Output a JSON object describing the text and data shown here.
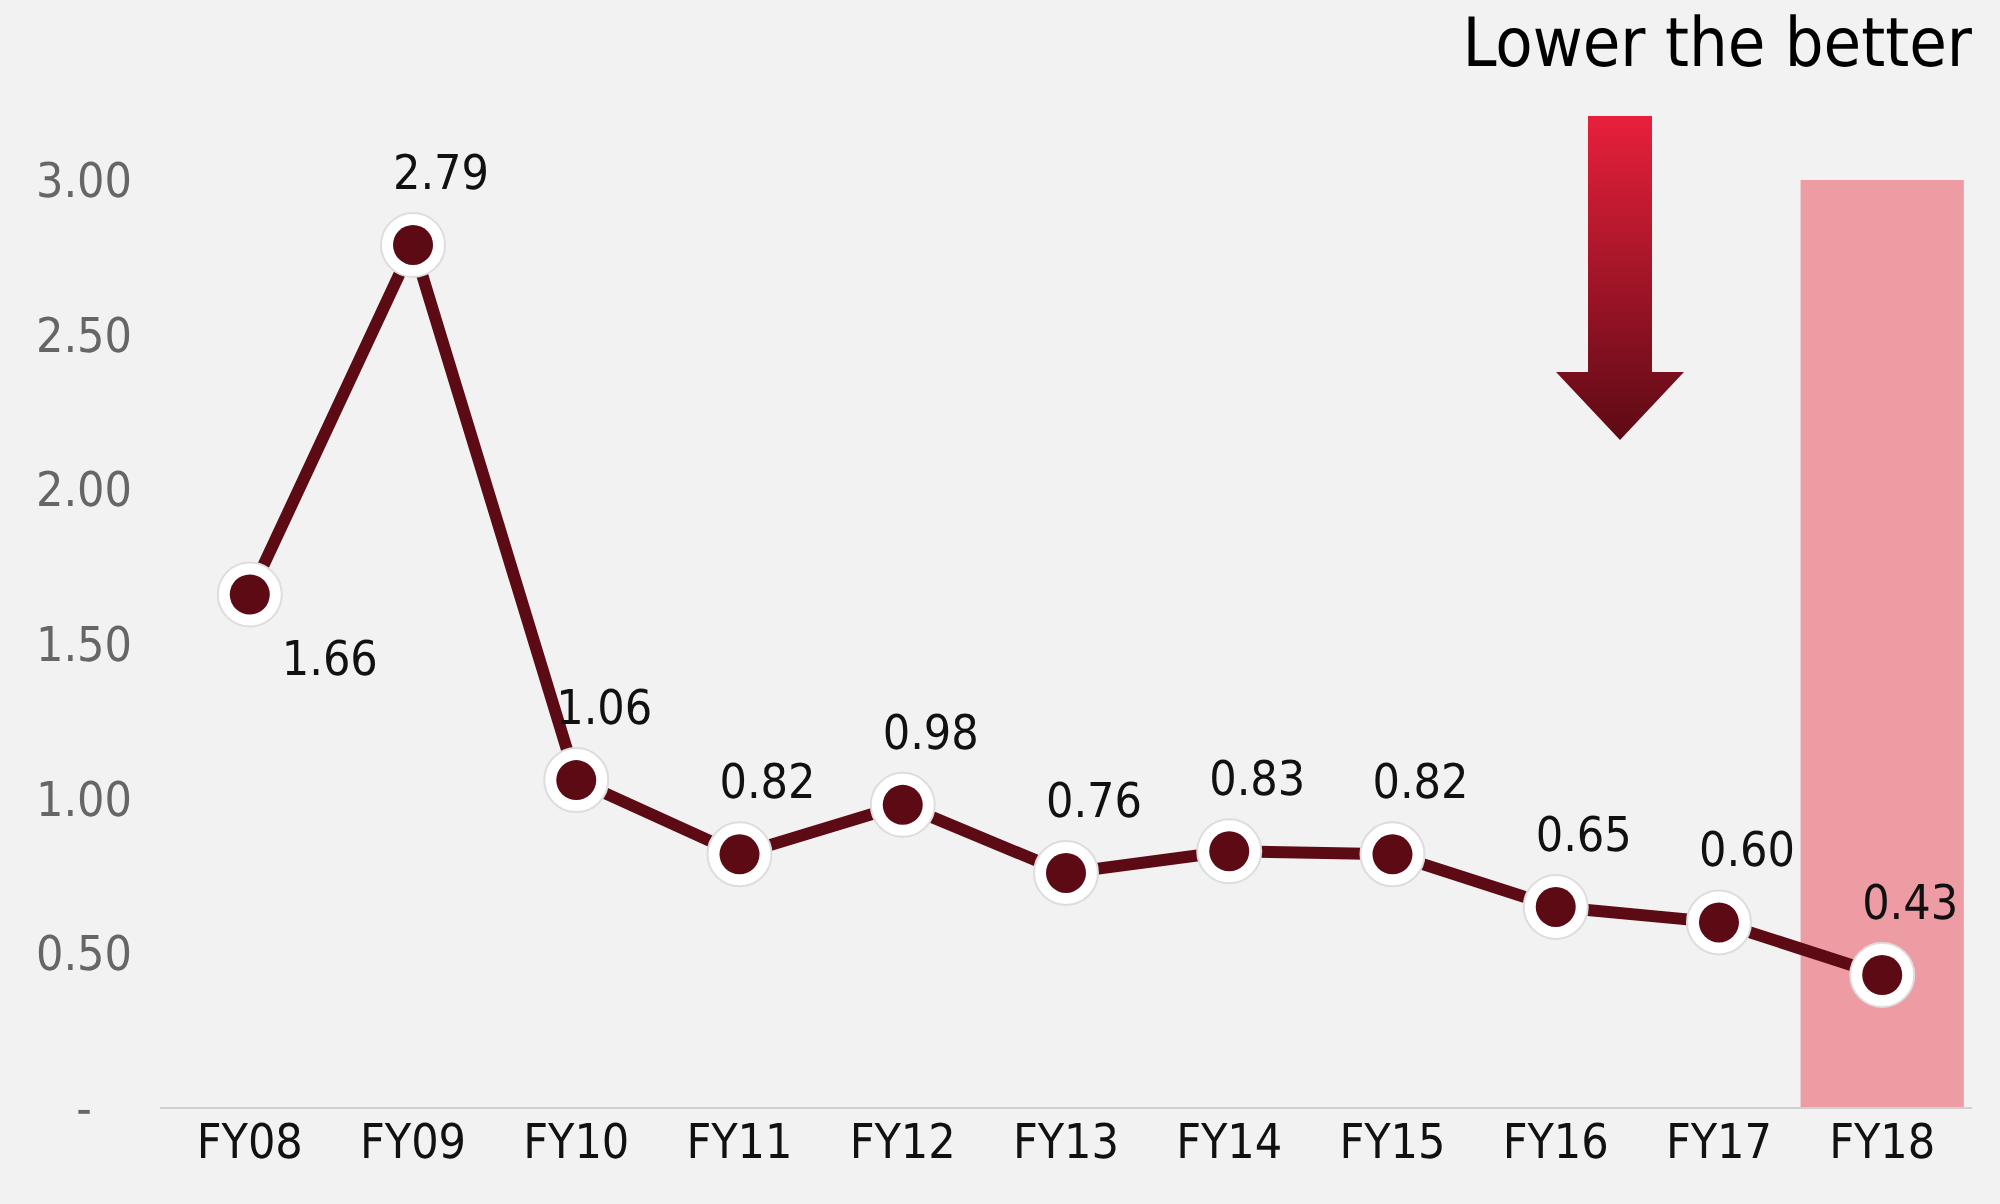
{
  "chart_data": {
    "type": "line",
    "annotations": [
      "Lower the better"
    ],
    "categories": [
      "FY08",
      "FY09",
      "FY10",
      "FY11",
      "FY12",
      "FY13",
      "FY14",
      "FY15",
      "FY16",
      "FY17",
      "FY18"
    ],
    "values": [
      1.66,
      2.79,
      1.06,
      0.82,
      0.98,
      0.76,
      0.83,
      0.82,
      0.65,
      0.6,
      0.43
    ],
    "color": "#5c0a14",
    "marker": "circle",
    "line_style": "solid",
    "data_labels": true,
    "value_labels": [
      "1.66",
      "2.79",
      "1.06",
      "0.82",
      "0.98",
      "0.76",
      "0.83",
      "0.82",
      "0.65",
      "0.60",
      "0.43"
    ],
    "ylim": [
      0,
      3
    ],
    "yticks": [
      {
        "value": 0,
        "label": "-"
      },
      {
        "value": 0.5,
        "label": "0.50"
      },
      {
        "value": 1,
        "label": "1.00"
      },
      {
        "value": 1.5,
        "label": "1.50"
      },
      {
        "value": 2,
        "label": "2.00"
      },
      {
        "value": 2.5,
        "label": "2.50"
      },
      {
        "value": 3,
        "label": "3.00"
      }
    ],
    "grid": false,
    "legend": false,
    "bands": [
      {
        "axis": "x",
        "from": "FY18",
        "to": "FY18",
        "color": "#ee9ca4"
      }
    ]
  }
}
